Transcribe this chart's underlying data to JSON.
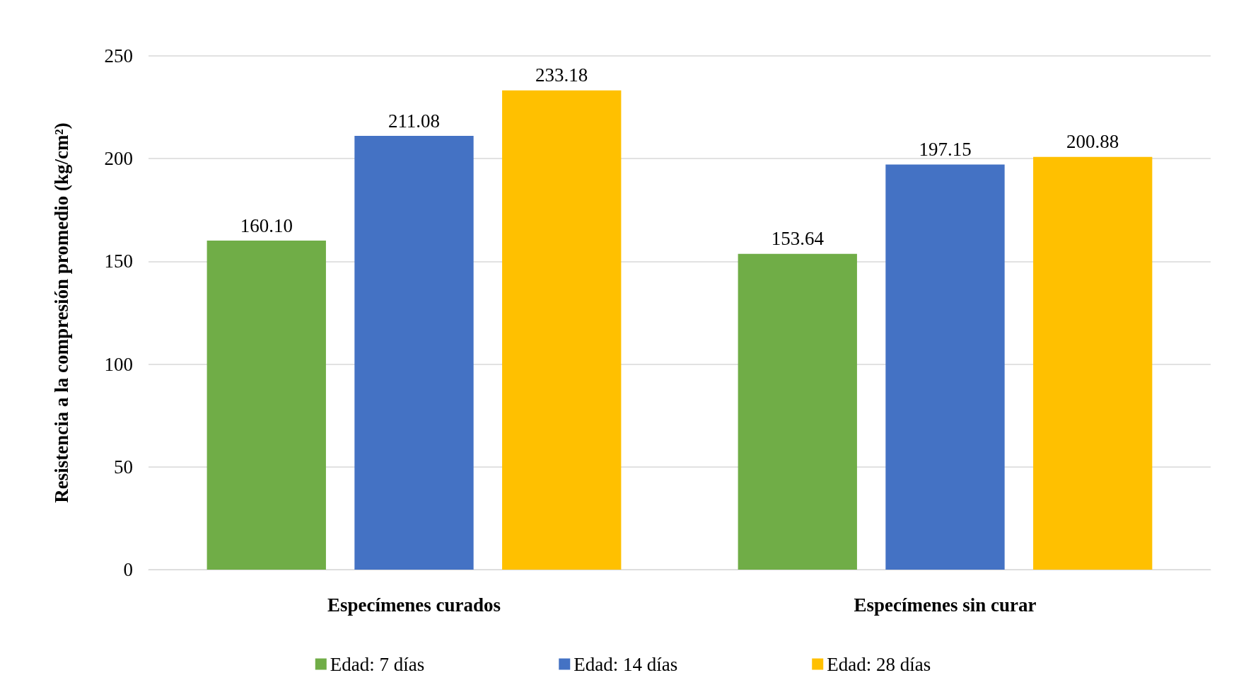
{
  "chart_data": {
    "type": "bar",
    "ylabel": "Resistencia a la compresión promedio (kg/cm²)",
    "categories": [
      "Especímenes curados",
      "Especímenes sin curar"
    ],
    "series": [
      {
        "name": "Edad: 7 días",
        "color": "#70ad47",
        "values": [
          160.1,
          153.64
        ],
        "value_labels": [
          "160.10",
          "153.64"
        ]
      },
      {
        "name": "Edad: 14 días",
        "color": "#4472c4",
        "values": [
          211.08,
          197.15
        ],
        "value_labels": [
          "211.08",
          "197.15"
        ]
      },
      {
        "name": "Edad: 28 días",
        "color": "#ffc000",
        "values": [
          233.18,
          200.88
        ],
        "value_labels": [
          "233.18",
          "200.88"
        ]
      }
    ],
    "ylim": [
      0,
      250
    ],
    "yticks": [
      0,
      50,
      100,
      150,
      200,
      250
    ],
    "grid": "y",
    "legend": "bottom"
  }
}
